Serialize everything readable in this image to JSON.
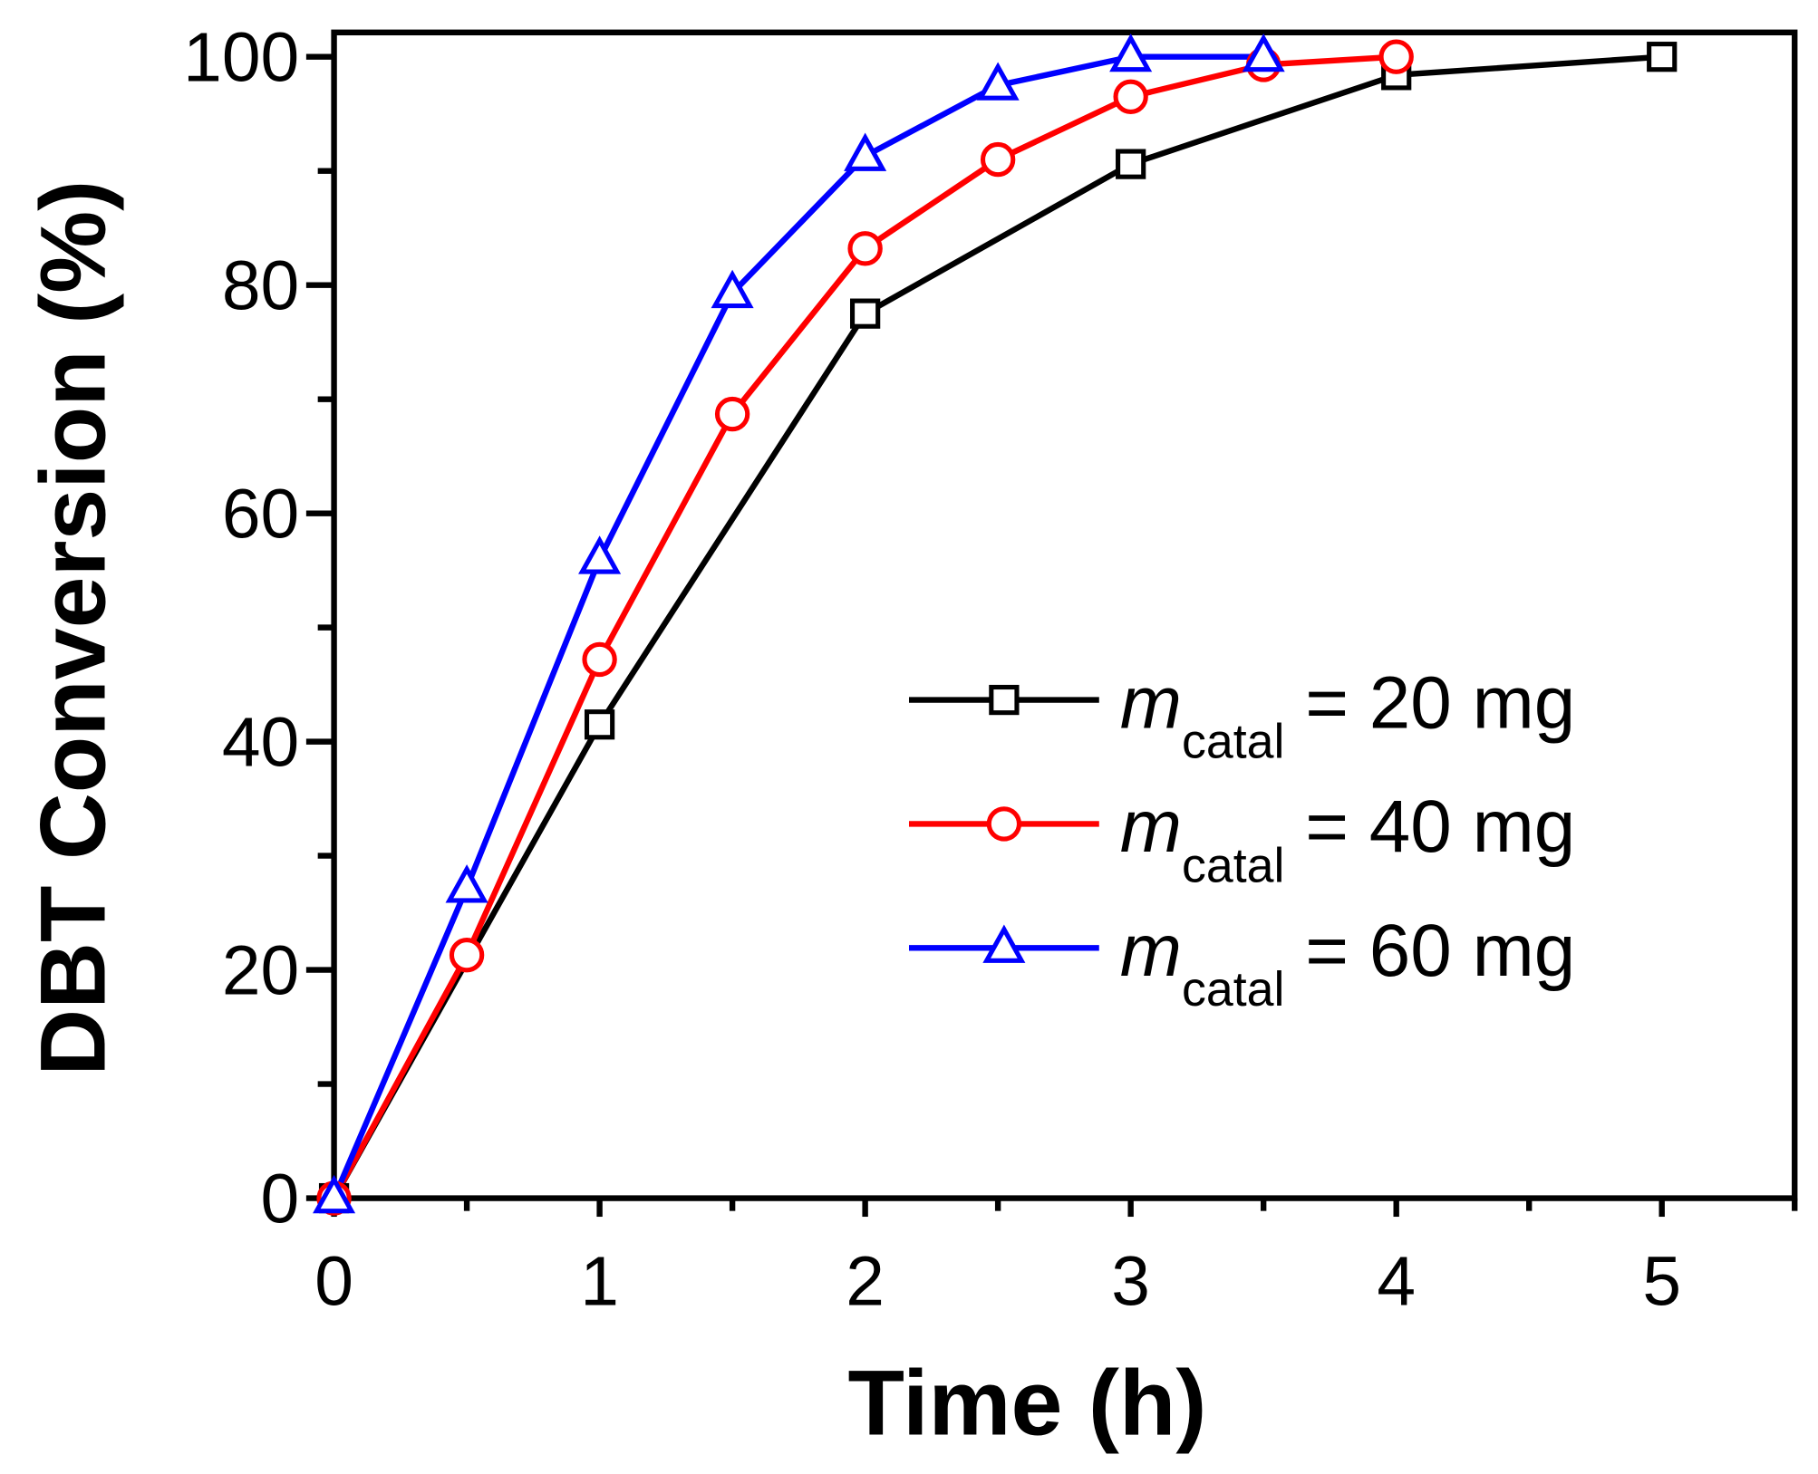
{
  "chart_data": {
    "type": "line",
    "title": "",
    "xlabel": "Time (h)",
    "ylabel": "DBT Conversion (%)",
    "xlim": [
      0,
      5.5
    ],
    "ylim": [
      0,
      100
    ],
    "xticks": [
      "0",
      "1",
      "2",
      "3",
      "4",
      "5"
    ],
    "yticks": [
      "0",
      "20",
      "40",
      "60",
      "80",
      "100"
    ],
    "grid": false,
    "legend_position": "center-right",
    "legend_var": "m",
    "legend_sub": "catal",
    "series": [
      {
        "name": "= 20 mg",
        "color": "#000000",
        "marker": "square",
        "x": [
          0,
          1,
          2,
          3,
          4,
          5
        ],
        "y": [
          0,
          41.5,
          77.5,
          90.6,
          98.4,
          100
        ]
      },
      {
        "name": "= 40 mg",
        "color": "#ff0000",
        "marker": "circle",
        "x": [
          0,
          0.5,
          1,
          1.5,
          2,
          2.5,
          3,
          3.5,
          4
        ],
        "y": [
          0,
          21.3,
          47.2,
          68.7,
          83.2,
          91.0,
          96.5,
          99.3,
          100
        ]
      },
      {
        "name": "= 60 mg",
        "color": "#0000ff",
        "marker": "triangle",
        "x": [
          0,
          0.5,
          1,
          1.5,
          2,
          2.5,
          3,
          3.5
        ],
        "y": [
          0,
          27.2,
          56.0,
          79.3,
          91.3,
          97.5,
          100,
          100
        ]
      }
    ]
  }
}
